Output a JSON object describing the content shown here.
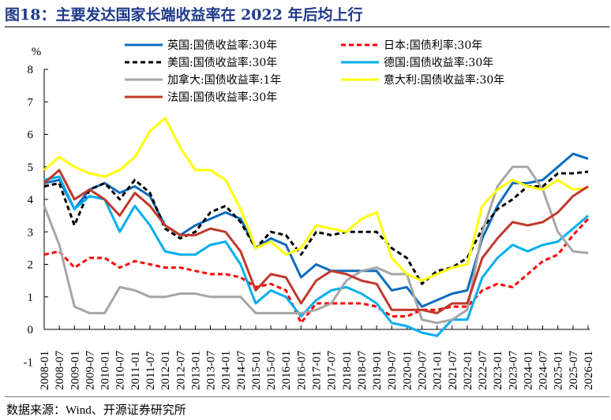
{
  "title": "图18：主要发达国家长端收益率在 2022 年后均上行",
  "source": "数据来源：Wind、开源证券研究所",
  "chart_data": {
    "type": "line",
    "ylabel": "%",
    "ylim": [
      -1,
      8
    ],
    "yticks": [
      "8",
      "7",
      "6",
      "5",
      "4",
      "3",
      "2",
      "1",
      "0",
      "-1"
    ],
    "grid": false,
    "legend_position": "top",
    "x": [
      "2008-01",
      "2008-07",
      "2009-01",
      "2009-07",
      "2010-01",
      "2010-07",
      "2011-01",
      "2011-07",
      "2012-01",
      "2012-07",
      "2013-01",
      "2013-07",
      "2014-01",
      "2014-07",
      "2015-01",
      "2015-07",
      "2016-01",
      "2016-07",
      "2017-01",
      "2017-07",
      "2018-01",
      "2018-07",
      "2019-01",
      "2019-07",
      "2020-01",
      "2020-07",
      "2021-01",
      "2021-07",
      "2022-01",
      "2022-07",
      "2023-01",
      "2023-07",
      "2024-01",
      "2024-07",
      "2025-01",
      "2025-07",
      "2026-01"
    ],
    "series": [
      {
        "name": "英国:国债收益率:30年",
        "color": "#0b6bbf",
        "dash": false,
        "values": [
          4.5,
          4.6,
          3.7,
          4.3,
          4.5,
          4.2,
          4.4,
          4.1,
          3.2,
          2.9,
          3.2,
          3.4,
          3.6,
          3.4,
          2.5,
          2.8,
          2.6,
          1.6,
          2.0,
          1.8,
          1.8,
          1.8,
          1.8,
          1.2,
          1.3,
          0.7,
          0.9,
          1.1,
          1.2,
          2.8,
          3.8,
          4.5,
          4.5,
          4.6,
          5.0,
          5.4,
          5.25
        ]
      },
      {
        "name": "日本:国债利率:30年",
        "color": "#ff0000",
        "dash": true,
        "values": [
          2.3,
          2.4,
          1.9,
          2.2,
          2.2,
          1.9,
          2.1,
          2.0,
          1.9,
          1.9,
          1.8,
          1.7,
          1.7,
          1.6,
          1.3,
          1.4,
          1.2,
          0.2,
          0.8,
          0.8,
          0.8,
          0.8,
          0.7,
          0.4,
          0.4,
          0.6,
          0.6,
          0.7,
          0.7,
          1.2,
          1.4,
          1.3,
          1.7,
          2.1,
          2.3,
          2.9,
          3.4
        ]
      },
      {
        "name": "美国:国债收益率:30年",
        "color": "#000000",
        "dash": true,
        "values": [
          4.4,
          4.5,
          3.2,
          4.3,
          4.5,
          4.0,
          4.6,
          4.2,
          3.1,
          2.8,
          3.0,
          3.6,
          3.8,
          3.3,
          2.5,
          3.0,
          2.9,
          2.3,
          3.0,
          2.9,
          3.0,
          3.0,
          3.0,
          2.5,
          2.2,
          1.4,
          1.8,
          1.9,
          2.2,
          3.1,
          3.7,
          4.0,
          4.4,
          4.4,
          4.8,
          4.8,
          4.85
        ]
      },
      {
        "name": "德国:国债收益率:30年",
        "color": "#00aeef",
        "dash": false,
        "values": [
          4.6,
          4.7,
          3.7,
          4.1,
          4.0,
          3.0,
          3.8,
          3.2,
          2.4,
          2.3,
          2.3,
          2.6,
          2.7,
          2.0,
          0.8,
          1.2,
          1.0,
          0.4,
          0.9,
          1.2,
          1.3,
          1.1,
          0.8,
          0.2,
          0.1,
          -0.1,
          -0.2,
          0.3,
          0.3,
          1.6,
          2.2,
          2.6,
          2.4,
          2.6,
          2.7,
          3.1,
          3.5
        ]
      },
      {
        "name": "加拿大:国债收益率:1年",
        "color": "#a6a6a6",
        "dash": false,
        "values": [
          3.8,
          2.6,
          0.7,
          0.5,
          0.5,
          1.3,
          1.2,
          1.0,
          1.0,
          1.1,
          1.1,
          1.0,
          1.0,
          1.0,
          0.5,
          0.5,
          0.5,
          0.5,
          0.6,
          0.8,
          1.5,
          1.8,
          1.9,
          1.7,
          1.7,
          0.3,
          0.2,
          0.3,
          0.6,
          3.0,
          4.4,
          5.0,
          5.0,
          4.3,
          3.0,
          2.4,
          2.35
        ]
      },
      {
        "name": "意大利:国债收益率:30年",
        "color": "#ffff00",
        "dash": false,
        "values": [
          4.9,
          5.3,
          5.0,
          4.8,
          4.7,
          4.9,
          5.3,
          6.1,
          6.5,
          5.6,
          4.9,
          4.9,
          4.6,
          3.7,
          2.5,
          2.7,
          2.3,
          2.5,
          3.2,
          3.1,
          3.0,
          3.4,
          3.6,
          2.2,
          1.7,
          1.5,
          1.7,
          1.9,
          2.0,
          3.8,
          4.3,
          4.6,
          4.4,
          4.3,
          4.6,
          4.3,
          4.35
        ]
      },
      {
        "name": "法国:国债收益率:30年",
        "color": "#c0392b",
        "dash": false,
        "values": [
          4.5,
          4.9,
          4.0,
          4.3,
          4.0,
          3.5,
          4.2,
          3.8,
          3.2,
          2.9,
          2.9,
          3.1,
          3.0,
          2.4,
          1.2,
          1.7,
          1.6,
          0.8,
          1.5,
          1.8,
          1.7,
          1.5,
          1.4,
          0.6,
          0.6,
          0.6,
          0.5,
          0.8,
          0.8,
          2.2,
          2.8,
          3.3,
          3.2,
          3.3,
          3.6,
          4.1,
          4.4
        ]
      }
    ]
  }
}
